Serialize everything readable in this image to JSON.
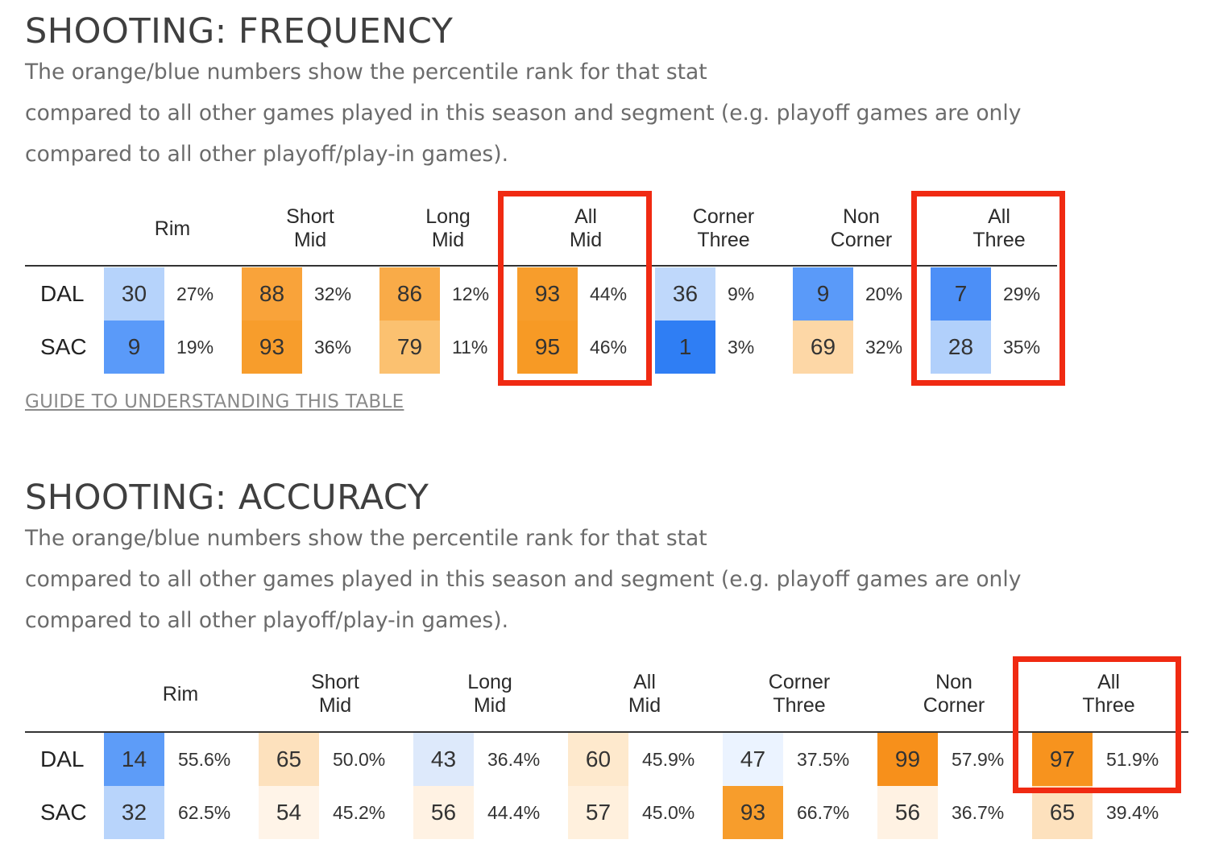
{
  "colors": {
    "highlight": "#f02a12",
    "rank_scale": {
      "99": "#f7901b",
      "97": "#f7931e",
      "95": "#f79a25",
      "93": "#f79d2c",
      "88": "#f9a33a",
      "86": "#f9ab48",
      "79": "#fbc170",
      "69": "#fdd7a6",
      "65": "#fde1bd",
      "60": "#fee9cd",
      "57": "#fff0dd",
      "56": "#fff2e3",
      "54": "#fff4e8",
      "47": "#ebf3ff",
      "43": "#dde9fb",
      "36": "#bfd8fb",
      "32": "#b8d4fb",
      "30": "#b6d3fb",
      "28": "#b1d0fb",
      "14": "#5d9cf8",
      "9": "#5a9af9",
      "7": "#4c8ff7",
      "1": "#2f7ef4"
    }
  },
  "frequency": {
    "title": "SHOOTING: FREQUENCY",
    "description": [
      "The orange/blue numbers show the percentile rank for that stat",
      "compared to all other games played in this season and segment (e.g. playoff games are only",
      "compared to all other playoff/play-in games)."
    ],
    "columns": [
      {
        "label": [
          "Rim"
        ]
      },
      {
        "label": [
          "Short",
          "Mid"
        ]
      },
      {
        "label": [
          "Long",
          "Mid"
        ]
      },
      {
        "label": [
          "All",
          "Mid"
        ],
        "highlighted": true
      },
      {
        "label": [
          "Corner",
          "Three"
        ]
      },
      {
        "label": [
          "Non",
          "Corner"
        ]
      },
      {
        "label": [
          "All",
          "Three"
        ],
        "highlighted": true
      }
    ],
    "rows": [
      {
        "team": "DAL",
        "cells": [
          {
            "rank": 30,
            "value": "27%"
          },
          {
            "rank": 88,
            "value": "32%"
          },
          {
            "rank": 86,
            "value": "12%"
          },
          {
            "rank": 93,
            "value": "44%"
          },
          {
            "rank": 36,
            "value": "9%"
          },
          {
            "rank": 9,
            "value": "20%"
          },
          {
            "rank": 7,
            "value": "29%"
          }
        ]
      },
      {
        "team": "SAC",
        "cells": [
          {
            "rank": 9,
            "value": "19%"
          },
          {
            "rank": 93,
            "value": "36%"
          },
          {
            "rank": 79,
            "value": "11%"
          },
          {
            "rank": 95,
            "value": "46%"
          },
          {
            "rank": 1,
            "value": "3%"
          },
          {
            "rank": 69,
            "value": "32%"
          },
          {
            "rank": 28,
            "value": "35%"
          }
        ]
      }
    ],
    "guide_link": "GUIDE TO UNDERSTANDING THIS TABLE"
  },
  "accuracy": {
    "title": "SHOOTING: ACCURACY",
    "description": [
      "The orange/blue numbers show the percentile rank for that stat",
      "compared to all other games played in this season and segment (e.g. playoff games are only",
      "compared to all other playoff/play-in games)."
    ],
    "columns": [
      {
        "label": [
          "Rim"
        ]
      },
      {
        "label": [
          "Short",
          "Mid"
        ]
      },
      {
        "label": [
          "Long",
          "Mid"
        ]
      },
      {
        "label": [
          "All",
          "Mid"
        ]
      },
      {
        "label": [
          "Corner",
          "Three"
        ]
      },
      {
        "label": [
          "Non",
          "Corner"
        ]
      },
      {
        "label": [
          "All",
          "Three"
        ],
        "highlighted": true
      }
    ],
    "rows": [
      {
        "team": "DAL",
        "cells": [
          {
            "rank": 14,
            "value": "55.6%"
          },
          {
            "rank": 65,
            "value": "50.0%"
          },
          {
            "rank": 43,
            "value": "36.4%"
          },
          {
            "rank": 60,
            "value": "45.9%"
          },
          {
            "rank": 47,
            "value": "37.5%"
          },
          {
            "rank": 99,
            "value": "57.9%"
          },
          {
            "rank": 97,
            "value": "51.9%"
          }
        ]
      },
      {
        "team": "SAC",
        "cells": [
          {
            "rank": 32,
            "value": "62.5%"
          },
          {
            "rank": 54,
            "value": "45.2%"
          },
          {
            "rank": 56,
            "value": "44.4%"
          },
          {
            "rank": 57,
            "value": "45.0%"
          },
          {
            "rank": 93,
            "value": "66.7%"
          },
          {
            "rank": 56,
            "value": "36.7%"
          },
          {
            "rank": 65,
            "value": "39.4%"
          }
        ]
      }
    ]
  },
  "chart_data": [
    {
      "type": "table",
      "title": "SHOOTING: FREQUENCY",
      "categories": [
        "Rim",
        "Short Mid",
        "Long Mid",
        "All Mid",
        "Corner Three",
        "Non Corner",
        "All Three"
      ],
      "series": [
        {
          "name": "DAL",
          "rank": [
            30,
            88,
            86,
            93,
            36,
            9,
            7
          ],
          "values": [
            "27%",
            "32%",
            "12%",
            "44%",
            "9%",
            "20%",
            "29%"
          ]
        },
        {
          "name": "SAC",
          "rank": [
            9,
            93,
            79,
            95,
            1,
            69,
            28
          ],
          "values": [
            "19%",
            "36%",
            "11%",
            "46%",
            "3%",
            "32%",
            "35%"
          ]
        }
      ]
    },
    {
      "type": "table",
      "title": "SHOOTING: ACCURACY",
      "categories": [
        "Rim",
        "Short Mid",
        "Long Mid",
        "All Mid",
        "Corner Three",
        "Non Corner",
        "All Three"
      ],
      "series": [
        {
          "name": "DAL",
          "rank": [
            14,
            65,
            43,
            60,
            47,
            99,
            97
          ],
          "values": [
            "55.6%",
            "50.0%",
            "36.4%",
            "45.9%",
            "37.5%",
            "57.9%",
            "51.9%"
          ]
        },
        {
          "name": "SAC",
          "rank": [
            32,
            54,
            56,
            57,
            93,
            56,
            65
          ],
          "values": [
            "62.5%",
            "45.2%",
            "44.4%",
            "45.0%",
            "66.7%",
            "36.7%",
            "39.4%"
          ]
        }
      ]
    }
  ]
}
